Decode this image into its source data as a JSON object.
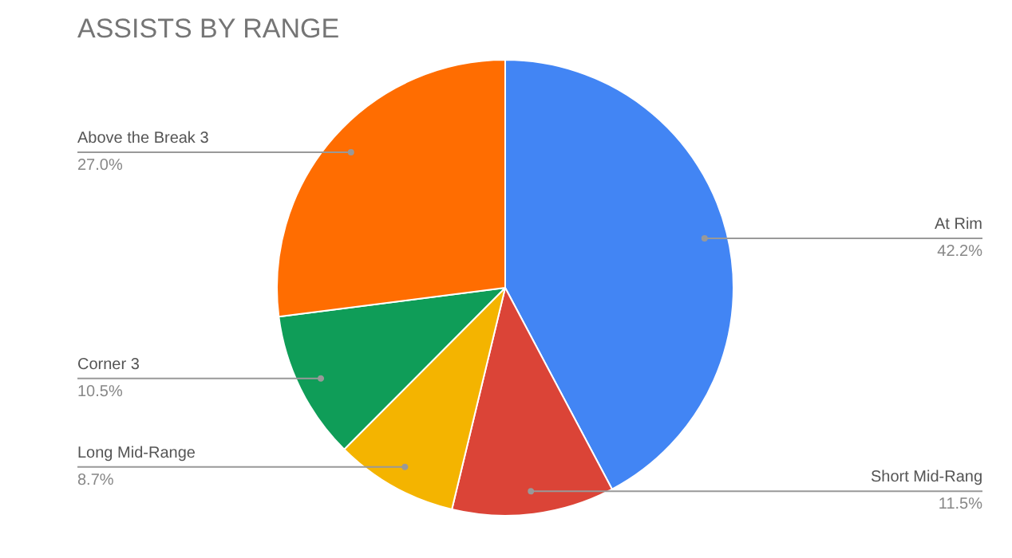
{
  "chart_data": {
    "type": "pie",
    "title": "ASSISTS BY RANGE",
    "categories": [
      "At Rim",
      "Short Mid-Rang",
      "Long Mid-Range",
      "Corner 3",
      "Above the Break 3"
    ],
    "values": [
      42.2,
      11.5,
      8.7,
      10.5,
      27.0
    ],
    "value_labels": [
      "42.2%",
      "11.5%",
      "8.7%",
      "10.5%",
      "27.0%"
    ],
    "colors": [
      "#4285f4",
      "#db4437",
      "#f4b400",
      "#0f9d58",
      "#ff6d01"
    ]
  }
}
